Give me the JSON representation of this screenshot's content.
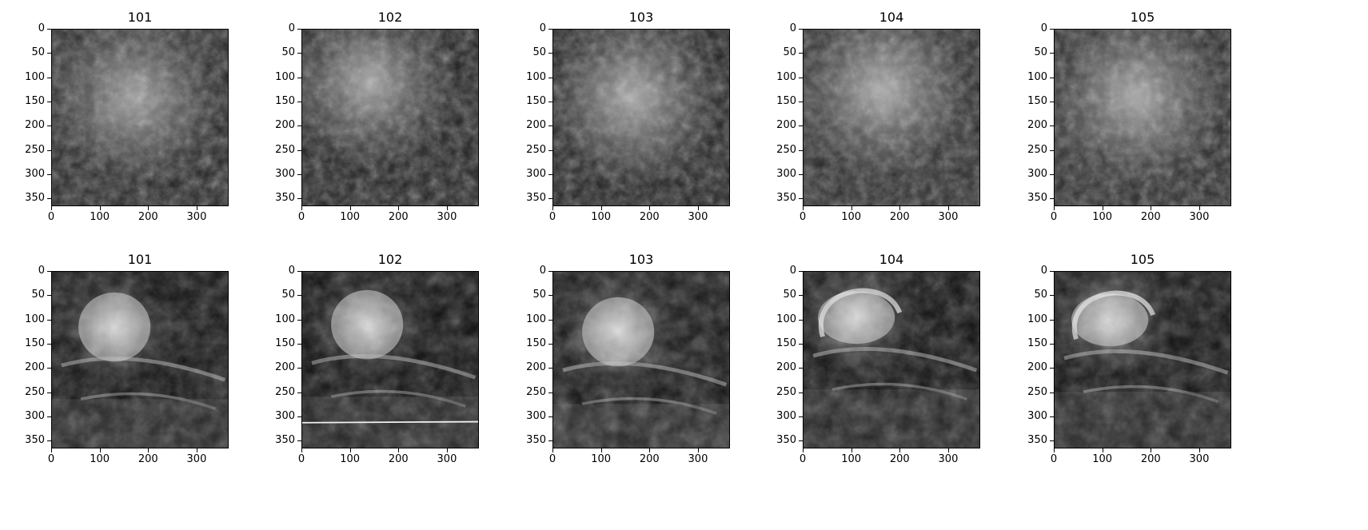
{
  "rows": [
    {
      "panels": [
        {
          "title": "101",
          "style": "smooth",
          "brightness": [
            0.62,
            0.32,
            0.14
          ]
        },
        {
          "title": "102",
          "style": "smooth",
          "brightness": [
            0.65,
            0.3,
            0.12
          ]
        },
        {
          "title": "103",
          "style": "smooth",
          "brightness": [
            0.66,
            0.33,
            0.12
          ]
        },
        {
          "title": "104",
          "style": "smooth",
          "brightness": [
            0.68,
            0.35,
            0.16
          ]
        },
        {
          "title": "105",
          "style": "smooth",
          "brightness": [
            0.66,
            0.35,
            0.16
          ]
        }
      ]
    },
    {
      "panels": [
        {
          "title": "101",
          "style": "satellite",
          "brightness": [
            0.9,
            0.18,
            0.06
          ]
        },
        {
          "title": "102",
          "style": "satellite",
          "brightness": [
            0.88,
            0.17,
            0.05
          ]
        },
        {
          "title": "103",
          "style": "satellite",
          "brightness": [
            0.86,
            0.25,
            0.08
          ]
        },
        {
          "title": "104",
          "style": "satellite-spiral",
          "brightness": [
            0.9,
            0.22,
            0.05
          ]
        },
        {
          "title": "105",
          "style": "satellite-spiral",
          "brightness": [
            0.9,
            0.24,
            0.06
          ]
        }
      ]
    }
  ],
  "axes": {
    "x_ticks": [
      "0",
      "100",
      "200",
      "300"
    ],
    "y_ticks": [
      "0",
      "50",
      "100",
      "150",
      "200",
      "250",
      "300",
      "350"
    ]
  }
}
